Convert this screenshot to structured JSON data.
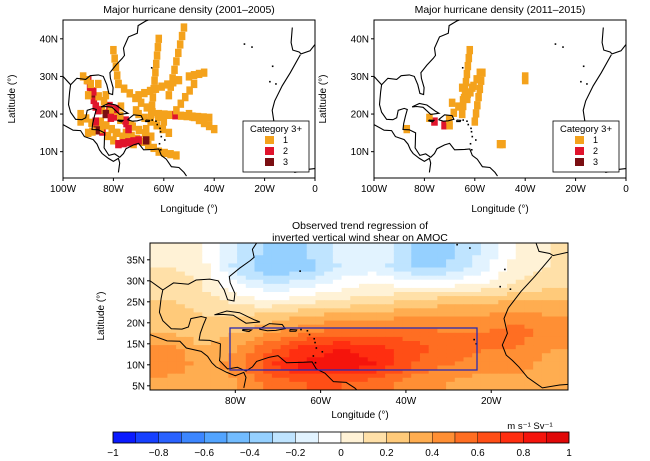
{
  "panel_a": {
    "title": "Major hurricane density (2001–2005)",
    "ylabel": "Latitude (°)",
    "xlabel": "Longitude (°)",
    "y_ticks": [
      "40N",
      "30N",
      "20N",
      "10N"
    ],
    "x_ticks": [
      "100W",
      "80W",
      "60W",
      "40W",
      "20W",
      "0"
    ],
    "legend": {
      "title": "Category 3+",
      "items": [
        {
          "label": "1",
          "color": "#f4a21c"
        },
        {
          "label": "2",
          "color": "#e0142c"
        },
        {
          "label": "3",
          "color": "#7a0e12"
        }
      ]
    }
  },
  "panel_b": {
    "title": "Major hurricane density (2011–2015)",
    "ylabel": "Latitude (°)",
    "xlabel": "Longitude (°)",
    "y_ticks": [
      "40N",
      "30N",
      "20N",
      "10N"
    ],
    "x_ticks": [
      "100W",
      "80W",
      "60W",
      "40W",
      "20W",
      "0"
    ],
    "legend": {
      "title": "Category 3+",
      "items": [
        {
          "label": "1",
          "color": "#f4a21c"
        },
        {
          "label": "2",
          "color": "#e0142c"
        },
        {
          "label": "3",
          "color": "#7a0e12"
        }
      ]
    }
  },
  "panel_c": {
    "title_line1": "Observed trend regression of",
    "title_line2": "inverted vertical wind shear on AMOC",
    "ylabel": "Latitude (°)",
    "xlabel": "Longitude (°)",
    "y_ticks": [
      "35N",
      "30N",
      "25N",
      "20N",
      "15N",
      "10N",
      "5N"
    ],
    "x_ticks": [
      "80W",
      "60W",
      "40W",
      "20W"
    ],
    "box_color": "#2b2bb0"
  },
  "colorbar": {
    "tick_labels": [
      "−1",
      "−0.8",
      "−0.6",
      "−0.4",
      "−0.2",
      "0",
      "0.2",
      "0.4",
      "0.6",
      "0.8",
      "1"
    ],
    "units": "m s⁻¹   Sv⁻¹",
    "colors": [
      "#0a1aff",
      "#1640ff",
      "#2a62ff",
      "#3c86ff",
      "#52a4ff",
      "#72bcff",
      "#95d0ff",
      "#bfe4ff",
      "#e2f3ff",
      "#ffffff",
      "#fff2d6",
      "#ffe0a8",
      "#ffca7a",
      "#ffad50",
      "#ff8f34",
      "#ff6e22",
      "#ff4e16",
      "#ff2e10",
      "#f5140c",
      "#e00808"
    ]
  },
  "panel_c_field": {
    "rows_lat": [
      "38N",
      "34N",
      "30N",
      "26N",
      "22N",
      "18N",
      "14N",
      "10N",
      "6N"
    ],
    "cols_lon": [
      "98W",
      "90W",
      "82W",
      "74W",
      "66W",
      "58W",
      "50W",
      "42W",
      "34W",
      "26W",
      "18W",
      "10W"
    ],
    "values": [
      [
        0.05,
        0.0,
        -0.2,
        -0.35,
        -0.3,
        -0.15,
        -0.1,
        -0.3,
        -0.35,
        -0.2,
        0.0,
        0.1
      ],
      [
        0.1,
        0.05,
        -0.25,
        -0.4,
        -0.35,
        -0.2,
        -0.15,
        -0.3,
        -0.3,
        -0.15,
        0.05,
        0.1
      ],
      [
        0.15,
        0.1,
        -0.1,
        -0.2,
        -0.15,
        -0.05,
        0.0,
        -0.05,
        -0.05,
        0.0,
        0.1,
        0.15
      ],
      [
        0.2,
        0.15,
        0.05,
        0.0,
        0.05,
        0.1,
        0.15,
        0.2,
        0.25,
        0.25,
        0.3,
        0.3
      ],
      [
        0.25,
        0.2,
        0.2,
        0.25,
        0.3,
        0.35,
        0.35,
        0.4,
        0.4,
        0.4,
        0.45,
        0.4
      ],
      [
        0.3,
        0.25,
        0.3,
        0.4,
        0.5,
        0.55,
        0.55,
        0.55,
        0.5,
        0.5,
        0.55,
        0.45
      ],
      [
        0.45,
        0.3,
        0.4,
        0.6,
        0.75,
        0.8,
        0.75,
        0.65,
        0.55,
        0.5,
        0.5,
        0.4
      ],
      [
        0.5,
        0.35,
        0.45,
        0.7,
        0.85,
        0.85,
        0.8,
        0.6,
        0.5,
        0.45,
        0.45,
        0.35
      ],
      [
        0.35,
        0.3,
        0.4,
        0.55,
        0.6,
        0.6,
        0.55,
        0.45,
        0.4,
        0.35,
        0.35,
        0.3
      ]
    ]
  }
}
